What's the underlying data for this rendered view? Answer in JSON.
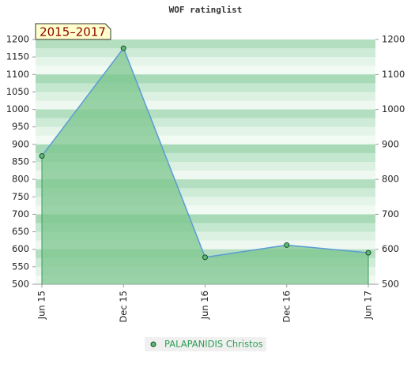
{
  "chart_data": {
    "type": "area",
    "title": "WOF ratinglist",
    "annotation": "2015–2017",
    "categories": [
      "Jun 15",
      "Dec 15",
      "Jun 16",
      "Dec 16",
      "Jun 17"
    ],
    "series": [
      {
        "name": "PALAPANIDIS Christos",
        "color": "#5b9bd5",
        "fill": "#7cc68e",
        "values": [
          867,
          1175,
          577,
          612,
          590
        ]
      }
    ],
    "ylim": [
      500,
      1200
    ],
    "yticks": [
      500,
      550,
      600,
      650,
      700,
      750,
      800,
      850,
      900,
      950,
      1000,
      1050,
      1100,
      1150,
      1200
    ],
    "y2lim": [
      500,
      1200
    ],
    "y2ticks": [
      500,
      600,
      700,
      800,
      900,
      1000,
      1100,
      1200
    ],
    "legend": "bottom"
  }
}
